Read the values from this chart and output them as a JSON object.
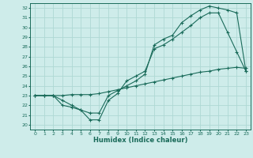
{
  "xlabel": "Humidex (Indice chaleur)",
  "bg_color": "#ceecea",
  "line_color": "#1a6b5a",
  "grid_color": "#aed8d4",
  "xlim": [
    -0.5,
    23.5
  ],
  "ylim": [
    19.5,
    32.5
  ],
  "xticks": [
    0,
    1,
    2,
    3,
    4,
    5,
    6,
    7,
    8,
    9,
    10,
    11,
    12,
    13,
    14,
    15,
    16,
    17,
    18,
    19,
    20,
    21,
    22,
    23
  ],
  "yticks": [
    20,
    21,
    22,
    23,
    24,
    25,
    26,
    27,
    28,
    29,
    30,
    31,
    32
  ],
  "series1_x": [
    0,
    1,
    2,
    3,
    4,
    5,
    6,
    7,
    8,
    9,
    10,
    11,
    12,
    13,
    14,
    15,
    16,
    17,
    18,
    19,
    20,
    21,
    22,
    23
  ],
  "series1_y": [
    23,
    23,
    23,
    22.5,
    22,
    21.5,
    20.5,
    20.5,
    22.5,
    23.2,
    24.5,
    25,
    25.5,
    27.8,
    28.2,
    28.8,
    29.5,
    30.2,
    31,
    31.5,
    31.5,
    29.5,
    27.5,
    25.5
  ],
  "series2_x": [
    0,
    1,
    2,
    3,
    4,
    5,
    6,
    7,
    8,
    9,
    10,
    11,
    12,
    13,
    14,
    15,
    16,
    17,
    18,
    19,
    20,
    21,
    22,
    23
  ],
  "series2_y": [
    23,
    23,
    23,
    22,
    21.8,
    21.5,
    21.2,
    21.2,
    23,
    23.5,
    24,
    24.5,
    25.2,
    28.2,
    28.8,
    29.2,
    30.5,
    31.2,
    31.8,
    32.2,
    32,
    31.8,
    31.5,
    25.5
  ],
  "series3_x": [
    0,
    1,
    2,
    3,
    4,
    5,
    6,
    7,
    8,
    9,
    10,
    11,
    12,
    13,
    14,
    15,
    16,
    17,
    18,
    19,
    20,
    21,
    22,
    23
  ],
  "series3_y": [
    23,
    23,
    23,
    23,
    23.1,
    23.1,
    23.1,
    23.2,
    23.4,
    23.6,
    23.8,
    24.0,
    24.2,
    24.4,
    24.6,
    24.8,
    25.0,
    25.2,
    25.4,
    25.5,
    25.7,
    25.8,
    25.9,
    25.8
  ]
}
